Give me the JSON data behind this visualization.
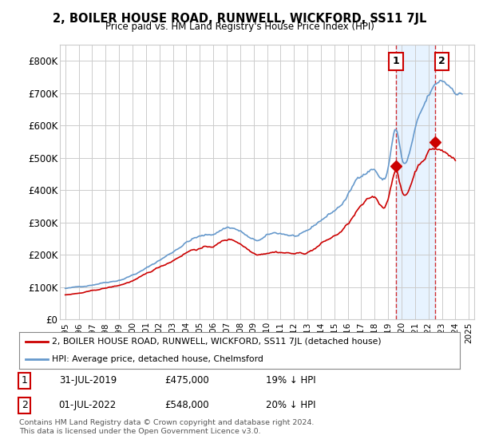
{
  "title": "2, BOILER HOUSE ROAD, RUNWELL, WICKFORD, SS11 7JL",
  "subtitle": "Price paid vs. HM Land Registry's House Price Index (HPI)",
  "footer": "Contains HM Land Registry data © Crown copyright and database right 2024.\nThis data is licensed under the Open Government Licence v3.0.",
  "legend_label_red": "2, BOILER HOUSE ROAD, RUNWELL, WICKFORD, SS11 7JL (detached house)",
  "legend_label_blue": "HPI: Average price, detached house, Chelmsford",
  "sale1_date": "31-JUL-2019",
  "sale1_price": "£475,000",
  "sale1_hpi": "19% ↓ HPI",
  "sale2_date": "01-JUL-2022",
  "sale2_price": "£548,000",
  "sale2_hpi": "20% ↓ HPI",
  "sale1_x": 2019.583,
  "sale1_y": 475000,
  "sale2_x": 2022.5,
  "sale2_y": 548000,
  "red_color": "#cc0000",
  "blue_color": "#6699cc",
  "shade_color": "#ddeeff",
  "background_color": "#ffffff",
  "grid_color": "#cccccc",
  "ylim": [
    0,
    850000
  ],
  "yticks": [
    0,
    100000,
    200000,
    300000,
    400000,
    500000,
    600000,
    700000,
    800000
  ],
  "ytick_labels": [
    "£0",
    "£100K",
    "£200K",
    "£300K",
    "£400K",
    "£500K",
    "£600K",
    "£700K",
    "£800K"
  ],
  "xmin": 1995.0,
  "xmax": 2025.0
}
